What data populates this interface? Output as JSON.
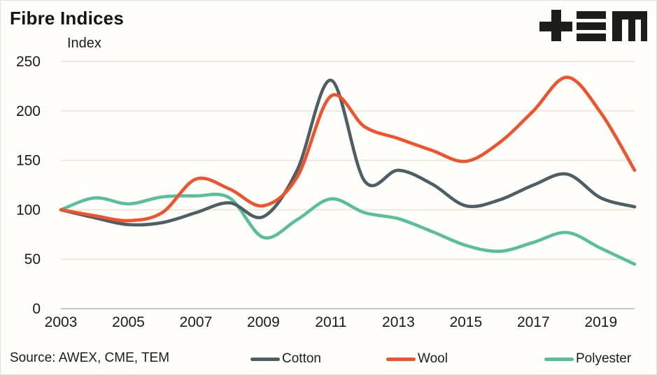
{
  "header": {
    "title": "Fibre Indices",
    "logo": {
      "name": "TEM",
      "glyphs": [
        "plus-icon",
        "triple-bar-icon",
        "m-icon"
      ],
      "color": "#1d1d1b"
    }
  },
  "chart_data": {
    "type": "line",
    "title": "Fibre Indices",
    "ylabel": "Index",
    "xlabel": "",
    "x": [
      2003,
      2004,
      2005,
      2006,
      2007,
      2008,
      2009,
      2010,
      2011,
      2012,
      2013,
      2014,
      2015,
      2016,
      2017,
      2018,
      2019,
      2020
    ],
    "xticks": [
      2003,
      2005,
      2007,
      2009,
      2011,
      2013,
      2015,
      2017,
      2019
    ],
    "yticks": [
      0,
      50,
      100,
      150,
      200,
      250
    ],
    "ylim": [
      0,
      250
    ],
    "grid": true,
    "grid_color": "#ece7d9",
    "zero_line_color": "#c9c8c4",
    "legend_position": "bottom",
    "series": [
      {
        "name": "Cotton",
        "color": "#4d5f63",
        "values": [
          100,
          92,
          85,
          87,
          97,
          107,
          93,
          140,
          231,
          129,
          140,
          126,
          104,
          110,
          125,
          136,
          112,
          103
        ]
      },
      {
        "name": "Wool",
        "color": "#f2512b",
        "values": [
          100,
          94,
          89,
          97,
          131,
          121,
          104,
          133,
          215,
          184,
          172,
          160,
          149,
          168,
          200,
          234,
          198,
          140
        ]
      },
      {
        "name": "Polyester",
        "color": "#58bf9c",
        "values": [
          100,
          112,
          106,
          113,
          114,
          112,
          72,
          90,
          111,
          97,
          91,
          78,
          64,
          58,
          67,
          77,
          61,
          45
        ]
      }
    ]
  },
  "footer": {
    "source": "Source: AWEX, CME, TEM"
  }
}
